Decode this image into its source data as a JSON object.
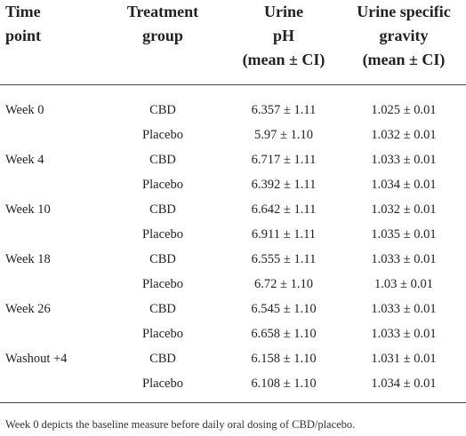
{
  "table": {
    "headers": {
      "time_point": [
        "Time",
        "point"
      ],
      "treatment_group": [
        "Treatment",
        "group"
      ],
      "urine_ph": [
        "Urine",
        "pH",
        "(mean ± CI)"
      ],
      "urine_sg": [
        "Urine specific",
        "gravity",
        "(mean ± CI)"
      ]
    },
    "rows": [
      {
        "time": "Week 0",
        "group": "CBD",
        "ph": "6.357 ± 1.11",
        "sg": "1.025 ± 0.01"
      },
      {
        "time": "",
        "group": "Placebo",
        "ph": "5.97 ± 1.10",
        "sg": "1.032 ± 0.01"
      },
      {
        "time": "Week 4",
        "group": "CBD",
        "ph": "6.717 ± 1.11",
        "sg": "1.033 ± 0.01"
      },
      {
        "time": "",
        "group": "Placebo",
        "ph": "6.392 ± 1.11",
        "sg": "1.034 ± 0.01"
      },
      {
        "time": "Week 10",
        "group": "CBD",
        "ph": "6.642 ± 1.11",
        "sg": "1.032 ± 0.01"
      },
      {
        "time": "",
        "group": "Placebo",
        "ph": "6.911 ± 1.11",
        "sg": "1.035 ± 0.01"
      },
      {
        "time": "Week 18",
        "group": "CBD",
        "ph": "6.555 ± 1.11",
        "sg": "1.033 ± 0.01"
      },
      {
        "time": "",
        "group": "Placebo",
        "ph": "6.72 ± 1.10",
        "sg": "1.03 ± 0.01"
      },
      {
        "time": "Week 26",
        "group": "CBD",
        "ph": "6.545 ± 1.10",
        "sg": "1.033 ± 0.01"
      },
      {
        "time": "",
        "group": "Placebo",
        "ph": "6.658 ± 1.10",
        "sg": "1.033 ± 0.01"
      },
      {
        "time": "Washout +4",
        "group": "CBD",
        "ph": "6.158 ± 1.10",
        "sg": "1.031 ± 0.01"
      },
      {
        "time": "",
        "group": "Placebo",
        "ph": "6.108 ± 1.10",
        "sg": "1.034 ± 0.01"
      }
    ]
  },
  "footnote": "Week 0 depicts the baseline measure before daily oral dosing of CBD/placebo."
}
